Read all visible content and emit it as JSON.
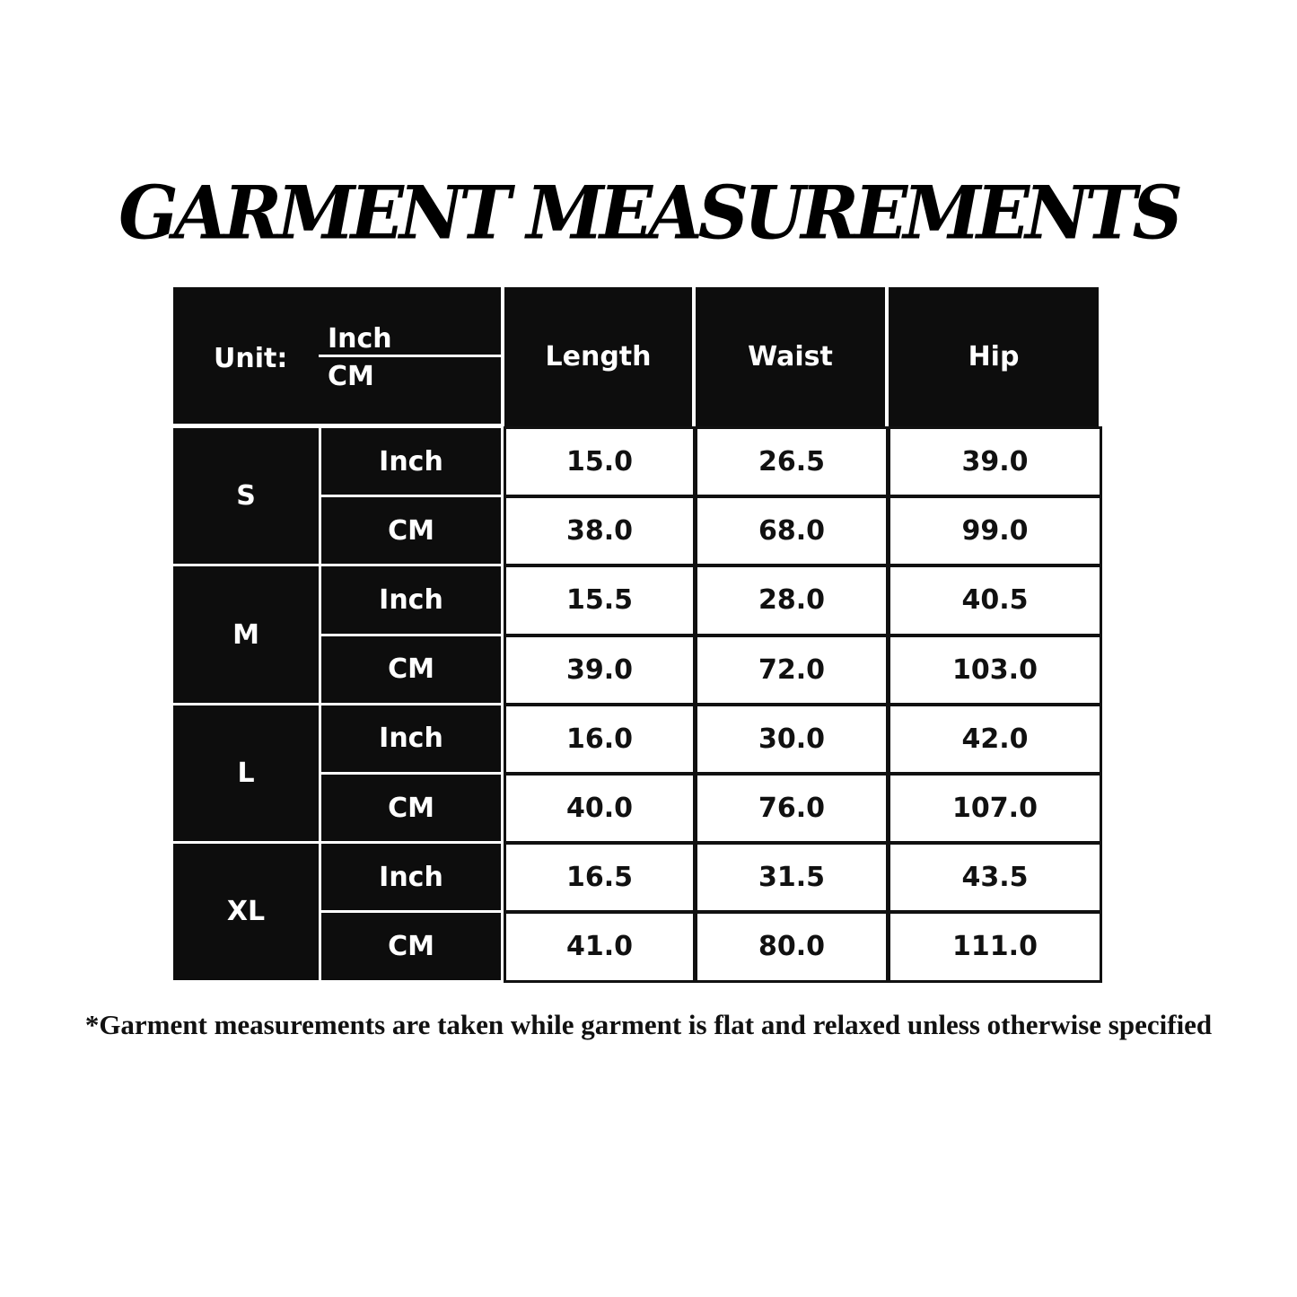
{
  "title": "GARMENT MEASUREMENTS",
  "table": {
    "unit_label": "Unit:",
    "unit_top": "Inch",
    "unit_bottom": "CM",
    "columns": [
      "Length",
      "Waist",
      "Hip"
    ],
    "sizes": [
      {
        "size": "S",
        "rows": [
          {
            "unit": "Inch",
            "values": [
              "15.0",
              "26.5",
              "39.0"
            ]
          },
          {
            "unit": "CM",
            "values": [
              "38.0",
              "68.0",
              "99.0"
            ]
          }
        ]
      },
      {
        "size": "M",
        "rows": [
          {
            "unit": "Inch",
            "values": [
              "15.5",
              "28.0",
              "40.5"
            ]
          },
          {
            "unit": "CM",
            "values": [
              "39.0",
              "72.0",
              "103.0"
            ]
          }
        ]
      },
      {
        "size": "L",
        "rows": [
          {
            "unit": "Inch",
            "values": [
              "16.0",
              "30.0",
              "42.0"
            ]
          },
          {
            "unit": "CM",
            "values": [
              "40.0",
              "76.0",
              "107.0"
            ]
          }
        ]
      },
      {
        "size": "XL",
        "rows": [
          {
            "unit": "Inch",
            "values": [
              "16.5",
              "31.5",
              "43.5"
            ]
          },
          {
            "unit": "CM",
            "values": [
              "41.0",
              "80.0",
              "111.0"
            ]
          }
        ]
      }
    ]
  },
  "footnote": "*Garment measurements are taken while garment is flat and relaxed unless otherwise specified"
}
